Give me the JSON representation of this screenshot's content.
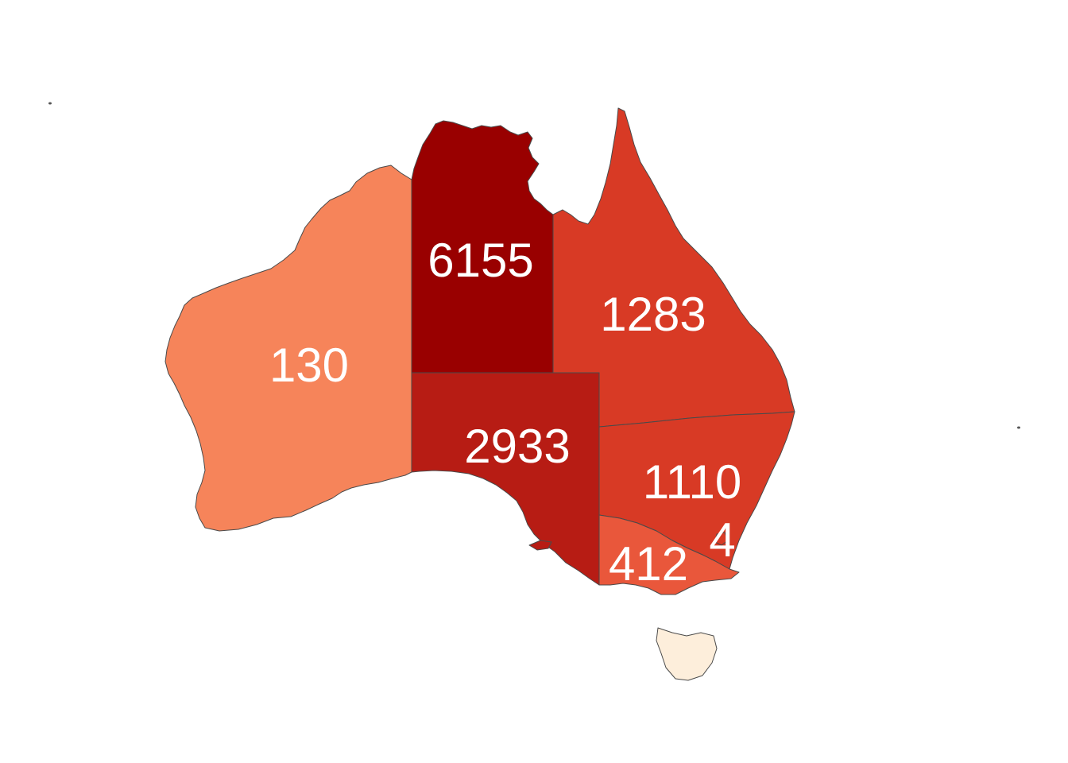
{
  "regions": [
    {
      "key": "wa",
      "value": 130,
      "label": "130",
      "color": "#f6845a"
    },
    {
      "key": "nt",
      "value": 6155,
      "label": "6155",
      "color": "#990000"
    },
    {
      "key": "qld",
      "value": 1283,
      "label": "1283",
      "color": "#d83a25"
    },
    {
      "key": "sa",
      "value": 2933,
      "label": "2933",
      "color": "#b71c14"
    },
    {
      "key": "nsw",
      "value": 1110,
      "label": "1110",
      "color": "#d83a25"
    },
    {
      "key": "act",
      "value": 4,
      "label": "4",
      "color": "#d83a25"
    },
    {
      "key": "vic",
      "value": 412,
      "label": "412",
      "color": "#e9573b"
    },
    {
      "key": "tas",
      "value": null,
      "label": "",
      "color": "#fdeedb"
    }
  ]
}
